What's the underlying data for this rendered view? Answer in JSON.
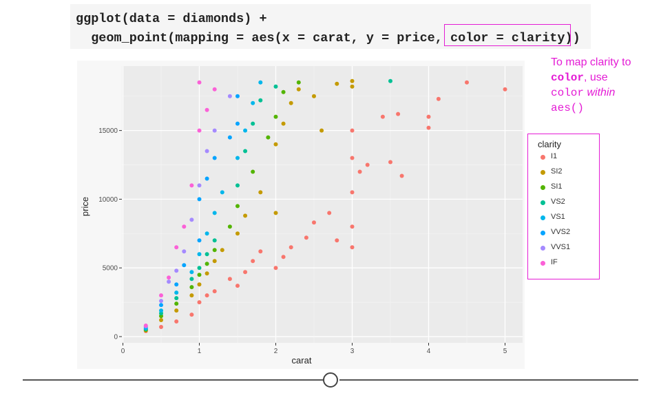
{
  "code": {
    "line1": "ggplot(data = diamonds) +",
    "line2": "  geom_point(mapping = aes(x = carat, y = price, color = clarity))"
  },
  "callout": {
    "part1": "To map clarity to ",
    "part2": "color",
    "part3": ", use ",
    "part4": "color",
    "part5": " within",
    "part6": "aes()"
  },
  "colors": {
    "highlight": "#e41bd5",
    "panel": "#ebebeb",
    "grid_major": "#ffffff"
  },
  "chart_data": {
    "type": "scatter",
    "title": "",
    "xlabel": "carat",
    "ylabel": "price",
    "xlim": [
      0,
      5.2
    ],
    "ylim": [
      0,
      19000
    ],
    "x_ticks": [
      0,
      1,
      2,
      3,
      4,
      5
    ],
    "y_ticks": [
      0,
      5000,
      10000,
      15000
    ],
    "x_tick_labels": [
      "0",
      "1",
      "2",
      "3",
      "4",
      "5"
    ],
    "y_tick_labels": [
      "0",
      "5000",
      "10000",
      "15000"
    ],
    "grid": true,
    "legend": {
      "title": "clarity",
      "placement": "right",
      "entries": [
        "I1",
        "SI2",
        "SI1",
        "VS2",
        "VS1",
        "VVS2",
        "VVS1",
        "IF"
      ]
    },
    "series": [
      {
        "name": "I1",
        "color": "#f8766d",
        "points": [
          [
            0.3,
            400
          ],
          [
            0.5,
            700
          ],
          [
            0.7,
            1100
          ],
          [
            0.9,
            1600
          ],
          [
            1.0,
            2500
          ],
          [
            1.1,
            3000
          ],
          [
            1.2,
            3300
          ],
          [
            1.4,
            4200
          ],
          [
            1.5,
            3700
          ],
          [
            1.6,
            4700
          ],
          [
            1.7,
            5500
          ],
          [
            1.8,
            6200
          ],
          [
            2.0,
            5000
          ],
          [
            2.1,
            5800
          ],
          [
            2.2,
            6500
          ],
          [
            2.4,
            7200
          ],
          [
            2.5,
            8300
          ],
          [
            2.7,
            9000
          ],
          [
            2.8,
            7000
          ],
          [
            3.0,
            6500
          ],
          [
            3.0,
            8000
          ],
          [
            3.0,
            10500
          ],
          [
            3.0,
            13000
          ],
          [
            3.0,
            15000
          ],
          [
            3.1,
            12000
          ],
          [
            3.2,
            12500
          ],
          [
            3.4,
            16000
          ],
          [
            3.5,
            12700
          ],
          [
            3.6,
            16200
          ],
          [
            3.65,
            11700
          ],
          [
            4.0,
            15200
          ],
          [
            4.0,
            16000
          ],
          [
            4.13,
            17300
          ],
          [
            4.5,
            18500
          ],
          [
            5.0,
            18000
          ]
        ]
      },
      {
        "name": "SI2",
        "color": "#c49a00",
        "points": [
          [
            0.3,
            450
          ],
          [
            0.5,
            1200
          ],
          [
            0.7,
            1900
          ],
          [
            0.9,
            3000
          ],
          [
            1.0,
            3800
          ],
          [
            1.1,
            4600
          ],
          [
            1.2,
            5500
          ],
          [
            1.3,
            6300
          ],
          [
            1.5,
            7500
          ],
          [
            1.6,
            8800
          ],
          [
            1.8,
            10500
          ],
          [
            2.0,
            9000
          ],
          [
            2.0,
            14000
          ],
          [
            2.1,
            15500
          ],
          [
            2.2,
            17000
          ],
          [
            2.3,
            18000
          ],
          [
            2.5,
            17500
          ],
          [
            2.6,
            15000
          ],
          [
            2.8,
            18400
          ],
          [
            3.0,
            18200
          ],
          [
            3.0,
            18600
          ]
        ]
      },
      {
        "name": "SI1",
        "color": "#53b400",
        "points": [
          [
            0.3,
            500
          ],
          [
            0.5,
            1500
          ],
          [
            0.7,
            2400
          ],
          [
            0.9,
            3600
          ],
          [
            1.0,
            4500
          ],
          [
            1.1,
            5300
          ],
          [
            1.2,
            6300
          ],
          [
            1.4,
            8000
          ],
          [
            1.5,
            9500
          ],
          [
            1.7,
            12000
          ],
          [
            1.9,
            14500
          ],
          [
            2.0,
            16000
          ],
          [
            2.1,
            17800
          ],
          [
            2.3,
            18500
          ]
        ]
      },
      {
        "name": "VS2",
        "color": "#00c094",
        "points": [
          [
            0.3,
            550
          ],
          [
            0.5,
            1700
          ],
          [
            0.7,
            2800
          ],
          [
            0.9,
            4200
          ],
          [
            1.0,
            5000
          ],
          [
            1.1,
            6000
          ],
          [
            1.2,
            7000
          ],
          [
            1.5,
            11000
          ],
          [
            1.6,
            13500
          ],
          [
            1.7,
            15500
          ],
          [
            1.8,
            17200
          ],
          [
            2.0,
            18200
          ],
          [
            3.5,
            18600
          ]
        ]
      },
      {
        "name": "VS1",
        "color": "#00b6eb",
        "points": [
          [
            0.3,
            600
          ],
          [
            0.5,
            1900
          ],
          [
            0.7,
            3200
          ],
          [
            0.9,
            4700
          ],
          [
            1.0,
            6000
          ],
          [
            1.1,
            7500
          ],
          [
            1.2,
            9000
          ],
          [
            1.3,
            10500
          ],
          [
            1.5,
            13000
          ],
          [
            1.6,
            15000
          ],
          [
            1.7,
            17000
          ],
          [
            1.8,
            18500
          ]
        ]
      },
      {
        "name": "VVS2",
        "color": "#06a4ff",
        "points": [
          [
            0.3,
            700
          ],
          [
            0.5,
            2300
          ],
          [
            0.7,
            3800
          ],
          [
            0.8,
            5200
          ],
          [
            1.0,
            7000
          ],
          [
            1.0,
            10000
          ],
          [
            1.1,
            11500
          ],
          [
            1.2,
            13000
          ],
          [
            1.4,
            14500
          ],
          [
            1.5,
            15500
          ],
          [
            1.5,
            17500
          ]
        ]
      },
      {
        "name": "VVS1",
        "color": "#a58aff",
        "points": [
          [
            0.3,
            750
          ],
          [
            0.5,
            2600
          ],
          [
            0.6,
            4000
          ],
          [
            0.7,
            4800
          ],
          [
            0.8,
            6200
          ],
          [
            0.9,
            8500
          ],
          [
            1.0,
            11000
          ],
          [
            1.1,
            13500
          ],
          [
            1.2,
            15000
          ],
          [
            1.4,
            17500
          ]
        ]
      },
      {
        "name": "IF",
        "color": "#fb61d7",
        "points": [
          [
            0.3,
            800
          ],
          [
            0.5,
            3000
          ],
          [
            0.6,
            4300
          ],
          [
            0.7,
            6500
          ],
          [
            0.8,
            8000
          ],
          [
            0.9,
            11000
          ],
          [
            1.0,
            15000
          ],
          [
            1.0,
            18500
          ],
          [
            1.1,
            16500
          ],
          [
            1.2,
            18000
          ]
        ]
      }
    ]
  }
}
